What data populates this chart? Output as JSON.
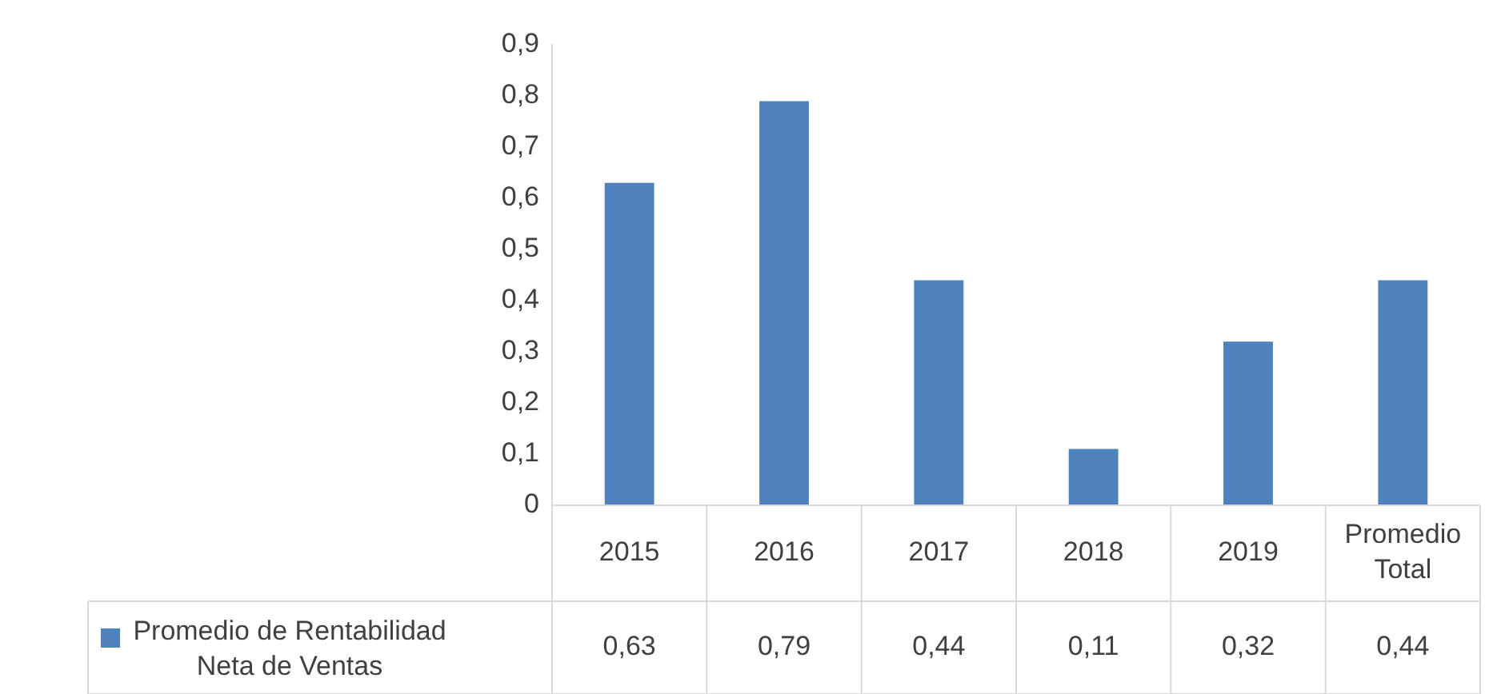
{
  "chart_data": {
    "type": "bar",
    "categories": [
      "2015",
      "2016",
      "2017",
      "2018",
      "2019",
      "Promedio Total"
    ],
    "series": [
      {
        "name": "Promedio de Rentabilidad Neta de Ventas",
        "color": "#4f81bd",
        "values": [
          0.63,
          0.79,
          0.44,
          0.11,
          0.32,
          0.44
        ],
        "value_labels": [
          "0,63",
          "0,79",
          "0,44",
          "0,11",
          "0,32",
          "0,44"
        ]
      }
    ],
    "ylim": [
      0,
      0.9
    ],
    "yticks": [
      {
        "value": 0,
        "label": "0"
      },
      {
        "value": 0.1,
        "label": "0,1"
      },
      {
        "value": 0.2,
        "label": "0,2"
      },
      {
        "value": 0.3,
        "label": "0,3"
      },
      {
        "value": 0.4,
        "label": "0,4"
      },
      {
        "value": 0.5,
        "label": "0,5"
      },
      {
        "value": 0.6,
        "label": "0,6"
      },
      {
        "value": 0.7,
        "label": "0,7"
      },
      {
        "value": 0.8,
        "label": "0,8"
      },
      {
        "value": 0.9,
        "label": "0,9"
      }
    ],
    "grid": false,
    "legend": "bottom"
  }
}
